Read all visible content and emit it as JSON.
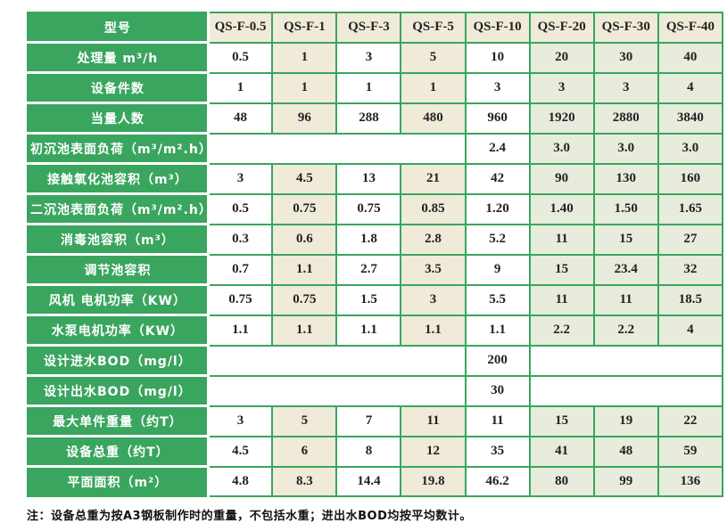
{
  "colors": {
    "header_green": "#3aa55e",
    "beige_column": "#f0ead9",
    "pale_green_column": "#e7ecdd",
    "text_dark": "#222222"
  },
  "table": {
    "header": {
      "label": "型号",
      "models": [
        "QS-F-0.5",
        "QS-F-1",
        "QS-F-3",
        "QS-F-5",
        "QS-F-10",
        "QS-F-20",
        "QS-F-30",
        "QS-F-40"
      ]
    },
    "rows": [
      {
        "type": "full",
        "label": "处理量 m³/h",
        "values": [
          "0.5",
          "1",
          "3",
          "5",
          "10",
          "20",
          "30",
          "40"
        ]
      },
      {
        "type": "full",
        "label": "设备件数",
        "values": [
          "1",
          "1",
          "1",
          "1",
          "3",
          "3",
          "3",
          "4"
        ]
      },
      {
        "type": "full",
        "label": "当量人数",
        "values": [
          "48",
          "96",
          "288",
          "480",
          "960",
          "1920",
          "2880",
          "3840"
        ]
      },
      {
        "type": "right4",
        "label": "初沉池表面负荷（m³/m².h）",
        "values": [
          "2.4",
          "3.0",
          "3.0",
          "3.0"
        ]
      },
      {
        "type": "full",
        "label": "接触氧化池容积（m³）",
        "values": [
          "3",
          "4.5",
          "13",
          "21",
          "42",
          "90",
          "130",
          "160"
        ]
      },
      {
        "type": "full",
        "label": "二沉池表面负荷（m³/m².h）",
        "values": [
          "0.5",
          "0.75",
          "0.75",
          "0.85",
          "1.20",
          "1.40",
          "1.50",
          "1.65"
        ]
      },
      {
        "type": "full",
        "label": "消毒池容积（m³）",
        "values": [
          "0.3",
          "0.6",
          "1.8",
          "2.8",
          "5.2",
          "11",
          "15",
          "27"
        ]
      },
      {
        "type": "full",
        "label": "调节池容积",
        "values": [
          "0.7",
          "1.1",
          "2.7",
          "3.5",
          "9",
          "15",
          "23.4",
          "32"
        ]
      },
      {
        "type": "full",
        "label": "风机 电机功率（KW）",
        "values": [
          "0.75",
          "0.75",
          "1.5",
          "3",
          "5.5",
          "11",
          "11",
          "18.5"
        ]
      },
      {
        "type": "full",
        "label": "水泵电机功率（KW）",
        "values": [
          "1.1",
          "1.1",
          "1.1",
          "1.1",
          "1.1",
          "2.2",
          "2.2",
          "4"
        ]
      },
      {
        "type": "single",
        "label": "设计进水BOD（mg/l）",
        "value": "200"
      },
      {
        "type": "single",
        "label": "设计出水BOD（mg/l）",
        "value": "30"
      },
      {
        "type": "full",
        "label": "最大单件重量（约T）",
        "values": [
          "3",
          "5",
          "7",
          "11",
          "11",
          "15",
          "19",
          "22"
        ]
      },
      {
        "type": "full",
        "label": "设备总重（约T）",
        "values": [
          "4.5",
          "6",
          "8",
          "12",
          "35",
          "41",
          "48",
          "59"
        ]
      },
      {
        "type": "full",
        "label": "平面面积（m²）",
        "values": [
          "4.8",
          "8.3",
          "14.4",
          "19.8",
          "46.2",
          "80",
          "99",
          "136"
        ]
      }
    ]
  },
  "note": "注：设备总重为按A3钢板制作时的重量，不包括水重；进出水BOD均按平均数计。"
}
